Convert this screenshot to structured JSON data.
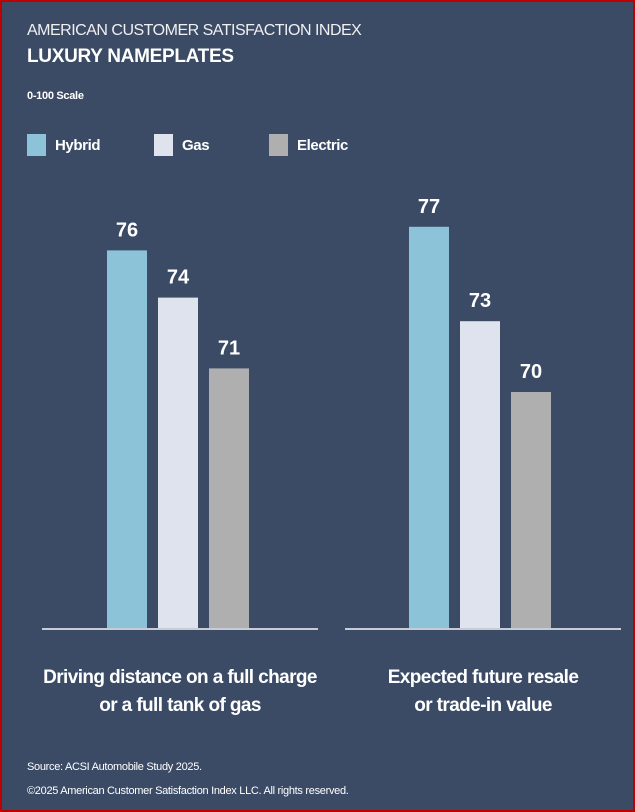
{
  "header": {
    "supertitle": "AMERICAN CUSTOMER SATISFACTION INDEX",
    "title": "LUXURY NAMEPLATES",
    "scale": "0-100 Scale"
  },
  "chart_data": {
    "type": "bar",
    "title": "LUXURY NAMEPLATES",
    "categories": [
      "Driving distance on a full charge or a full tank of gas",
      "Expected future resale or trade-in value"
    ],
    "category_lines": [
      [
        "Driving distance on a full charge",
        "or a full tank of gas"
      ],
      [
        "Expected future resale",
        "or trade-in value"
      ]
    ],
    "series": [
      {
        "name": "Hybrid",
        "color": "#8cc3d8",
        "values": [
          76,
          77
        ]
      },
      {
        "name": "Gas",
        "color": "#dfe3ee",
        "values": [
          74,
          73
        ]
      },
      {
        "name": "Electric",
        "color": "#afafaf",
        "values": [
          71,
          70
        ]
      }
    ],
    "ylabel": "0-100 Scale",
    "ylim": [
      60,
      80
    ],
    "grid": false,
    "legend": "top-left"
  },
  "footer": {
    "source": "Source: ACSI Automobile Study 2025.",
    "copyright": "©2025 American Customer Satisfaction Index LLC. All rights reserved."
  }
}
